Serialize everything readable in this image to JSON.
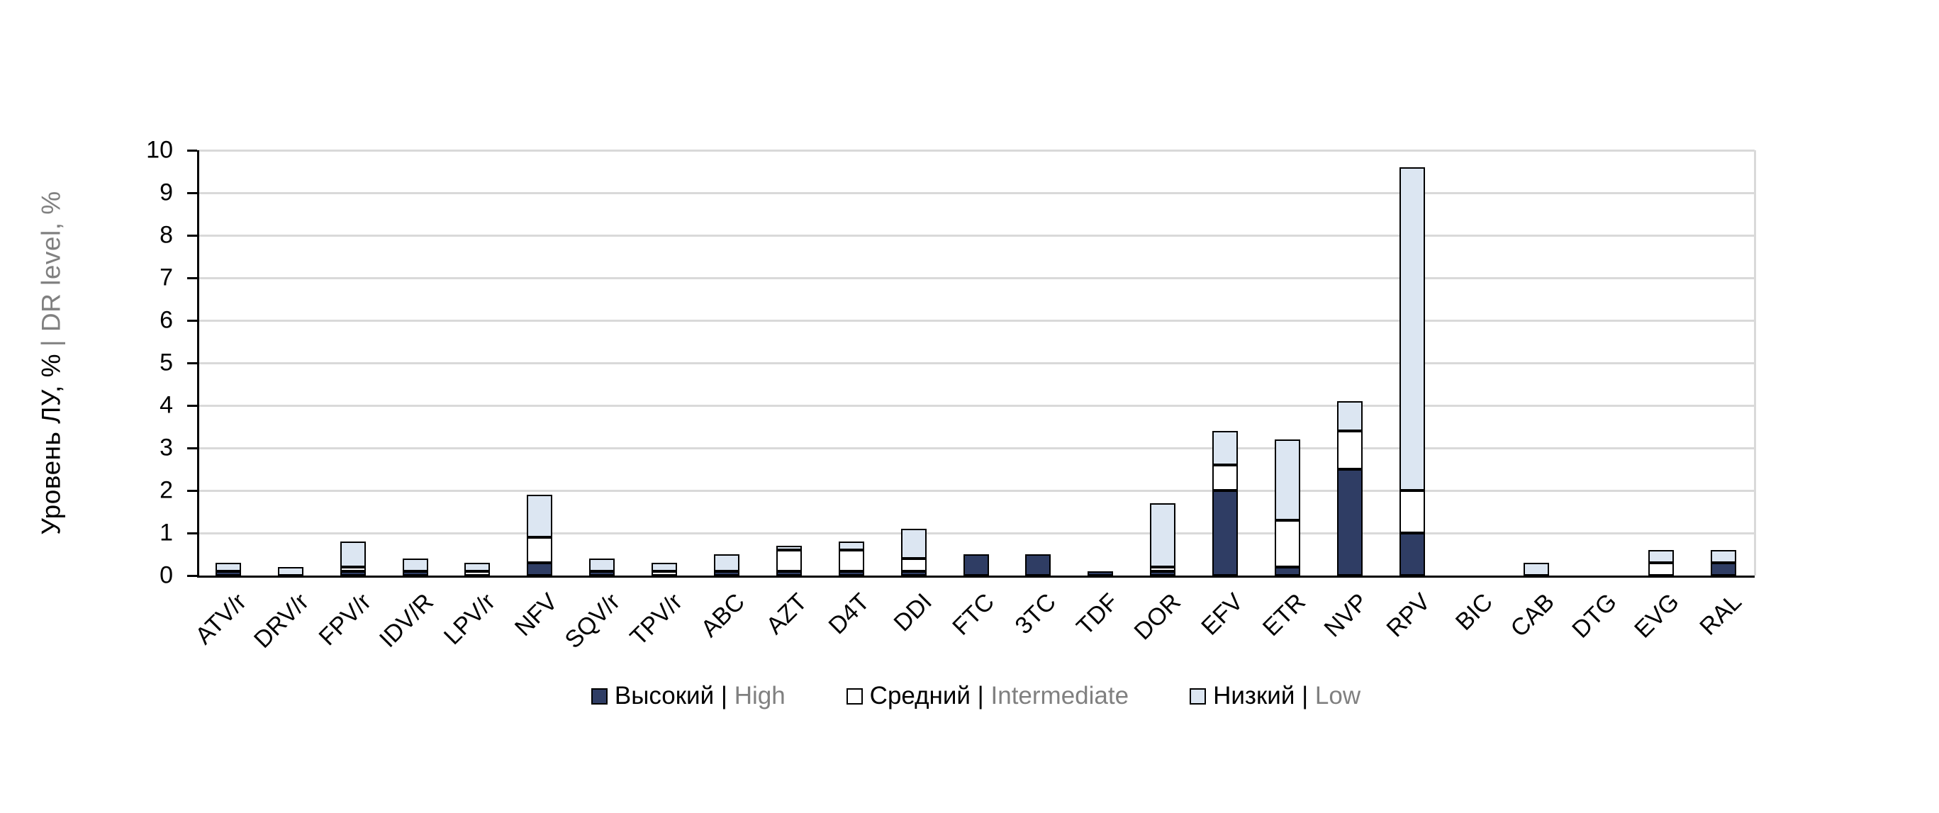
{
  "chart_data": {
    "type": "bar",
    "stacked": true,
    "title": "",
    "grid": "horizontal",
    "legend_position": "bottom",
    "y_axis": {
      "label_primary": "Уровень ЛУ, %",
      "label_secondary": "| DR level, %",
      "min": 0,
      "max": 10,
      "tick_step": 1,
      "tick_labels": [
        "0",
        "1",
        "2",
        "3",
        "4",
        "5",
        "6",
        "7",
        "8",
        "9",
        "10"
      ]
    },
    "categories": [
      "ATV/r",
      "DRV/r",
      "FPV/r",
      "IDV/R",
      "LPV/r",
      "NFV",
      "SQV/r",
      "TPV/r",
      "ABC",
      "AZT",
      "D4T",
      "DDI",
      "FTC",
      "3TC",
      "TDF",
      "DOR",
      "EFV",
      "ETR",
      "NVP",
      "RPV",
      "BIC",
      "CAB",
      "DTG",
      "EVG",
      "RAL"
    ],
    "series": [
      {
        "id": "high",
        "label_black": "Высокий |",
        "label_gray": "High",
        "color": "#2F3D64",
        "values": [
          0.1,
          0,
          0.1,
          0.1,
          0,
          0.3,
          0.1,
          0,
          0.1,
          0.1,
          0.1,
          0.1,
          0.5,
          0.5,
          0.1,
          0.1,
          2.0,
          0.2,
          2.5,
          1.0,
          0,
          0,
          0,
          0,
          0.3
        ]
      },
      {
        "id": "intermediate",
        "label_black": "Средний |",
        "label_gray": "Intermediate",
        "color": "#FFFFFF",
        "values": [
          0,
          0,
          0.1,
          0,
          0.1,
          0.6,
          0,
          0.1,
          0,
          0.5,
          0.5,
          0.3,
          0,
          0,
          0,
          0.1,
          0.6,
          1.1,
          0.9,
          1.0,
          0,
          0,
          0,
          0.3,
          0
        ]
      },
      {
        "id": "low",
        "label_black": "Низкий |",
        "label_gray": "Low",
        "color": "#DCE6F2",
        "values": [
          0.2,
          0.2,
          0.6,
          0.3,
          0.2,
          1.0,
          0.3,
          0.2,
          0.4,
          0.1,
          0.2,
          0.7,
          0,
          0,
          0,
          1.5,
          0.8,
          1.9,
          0.7,
          7.6,
          0,
          0.3,
          0,
          0.3,
          0.3
        ]
      }
    ]
  },
  "colors": {
    "background": "#FFFFFF",
    "gridline": "#D9D9D9",
    "axis": "#000000",
    "bar_border": "#000000",
    "text_primary": "#000000",
    "text_secondary": "#808080"
  }
}
